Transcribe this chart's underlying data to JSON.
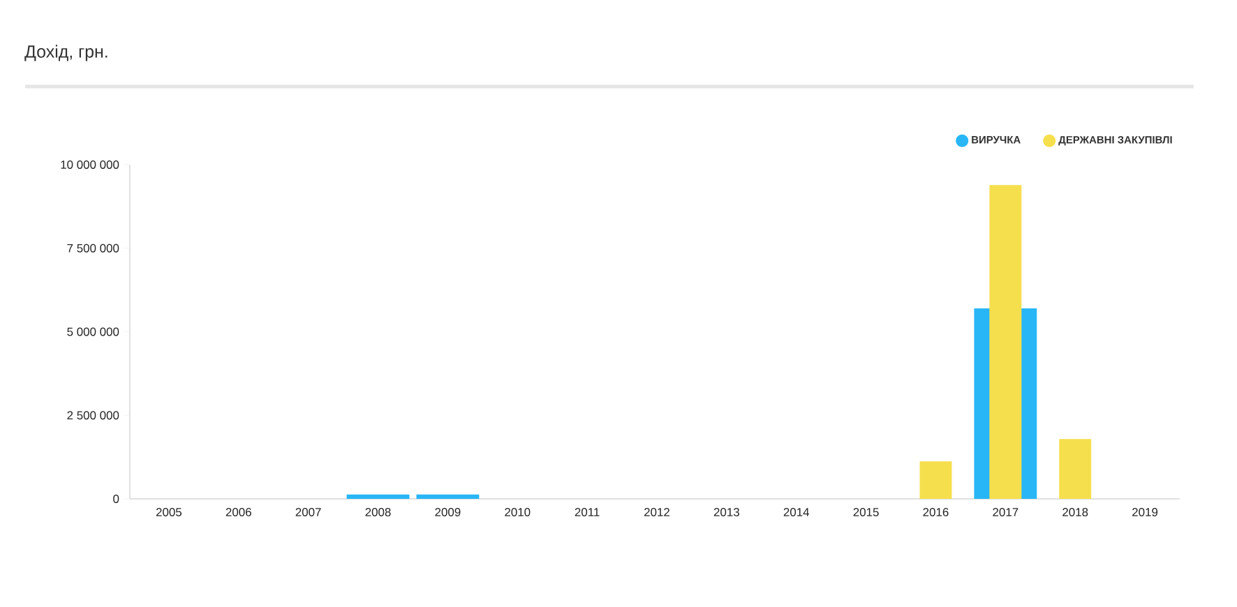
{
  "chart_data": {
    "type": "bar",
    "title": "Дохід, грн.",
    "categories": [
      "2005",
      "2006",
      "2007",
      "2008",
      "2009",
      "2010",
      "2011",
      "2012",
      "2013",
      "2014",
      "2015",
      "2016",
      "2017",
      "2018",
      "2019"
    ],
    "series": [
      {
        "name": "ВИРУЧКА",
        "color": "#29b6f6",
        "values": [
          null,
          null,
          null,
          130000,
          130000,
          null,
          null,
          null,
          null,
          null,
          null,
          null,
          5700000,
          null,
          null
        ]
      },
      {
        "name": "ДЕРЖАВНІ ЗАКУПІВЛІ",
        "color": "#f5df4d",
        "values": [
          null,
          null,
          null,
          null,
          null,
          null,
          null,
          null,
          null,
          null,
          null,
          1120000,
          9390000,
          1790000,
          null
        ]
      }
    ],
    "ylim": [
      0,
      10000000
    ],
    "yticks": [
      {
        "value": 0,
        "label": "0"
      },
      {
        "value": 2500000,
        "label": "2 500 000"
      },
      {
        "value": 5000000,
        "label": "5 000 000"
      },
      {
        "value": 7500000,
        "label": "7 500 000"
      },
      {
        "value": 10000000,
        "label": "10 000 000"
      }
    ],
    "legend": "top right",
    "grid": false
  }
}
